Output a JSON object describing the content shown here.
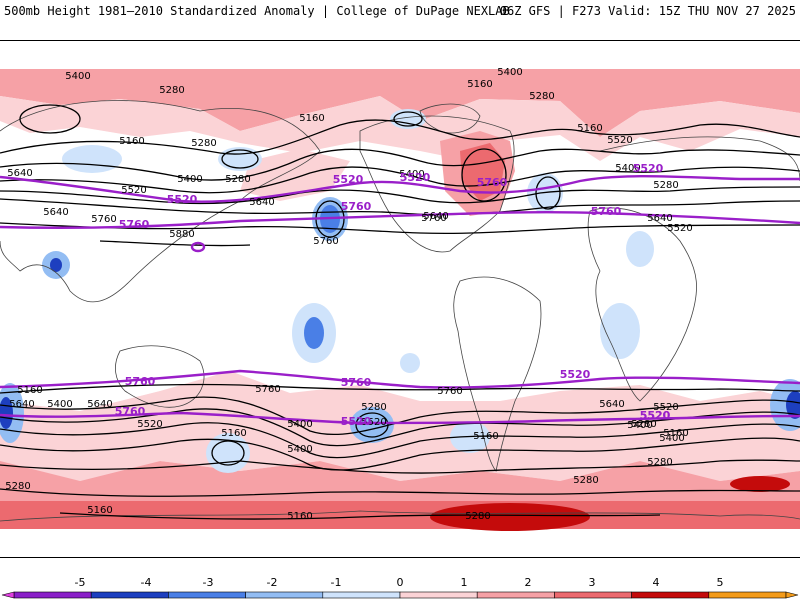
{
  "header": {
    "title": "500mb Height 1981–2010 Standardized Anomaly | College of DuPage NEXLAB",
    "run": "06Z GFS | F273 Valid: 15Z THU NOV 27 2025"
  },
  "colors": {
    "purple_contour": "#9a1fc9",
    "black_contour": "#000000",
    "coast": "#444444",
    "neg1": "#cfe3fb",
    "neg2": "#93bdf3",
    "neg3": "#4a7fe6",
    "neg4": "#1d3fbf",
    "neg5": "#8a1fc8",
    "pos1": "#fbd3d6",
    "pos2": "#f6a1a6",
    "pos3": "#ec6a6f",
    "pos4": "#c40b0b",
    "pos5": "#f39b1a"
  },
  "contour_labels": {
    "black": [
      "5400",
      "5280",
      "5160",
      "5640",
      "5400",
      "5280",
      "5520",
      "5760",
      "5880",
      "5160",
      "5400",
      "5160",
      "5280",
      "5640",
      "5760",
      "5640",
      "5400",
      "5520",
      "5760",
      "5640",
      "5520",
      "5400",
      "5280",
      "5160",
      "5280",
      "5160",
      "5520",
      "5280",
      "5160",
      "5640",
      "5400",
      "5280",
      "5160",
      "5400",
      "5280",
      "5160",
      "5760",
      "5760",
      "5280",
      "5160",
      "5640",
      "5520",
      "5400",
      "5280",
      "5640",
      "5400",
      "5280",
      "5160",
      "5640",
      "5520",
      "5400"
    ],
    "purple": [
      "5520",
      "5760",
      "5520",
      "5520",
      "5760",
      "5760",
      "5520",
      "5760",
      "5760",
      "5520",
      "5760",
      "5520",
      "5760",
      "5520",
      "5520"
    ]
  },
  "colorbar": {
    "ticks": [
      "-5",
      "-4",
      "-3",
      "-2",
      "-1",
      "0",
      "1",
      "2",
      "3",
      "4",
      "5"
    ]
  }
}
